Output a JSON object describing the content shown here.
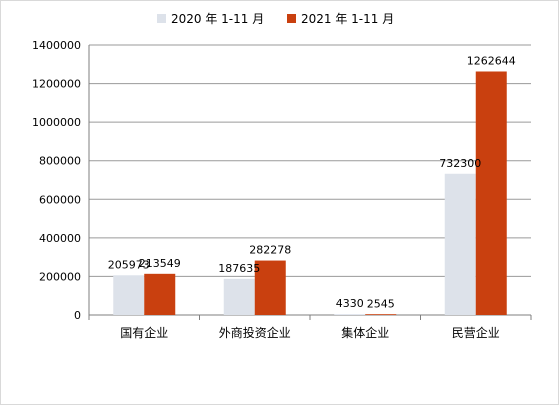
{
  "chart_data": {
    "type": "bar",
    "categories": [
      "国有企业",
      "外商投资企业",
      "集体企业",
      "民营企业"
    ],
    "series": [
      {
        "name": "2020 年 1-11 月",
        "values": [
          205973,
          187635,
          4330,
          732300
        ],
        "color": "#dde2ea"
      },
      {
        "name": "2021 年 1-11 月",
        "values": [
          213549,
          282278,
          2545,
          1262644
        ],
        "color": "#c9400f"
      }
    ],
    "ylim": [
      0,
      1400000
    ],
    "yticks": [
      0,
      200000,
      400000,
      600000,
      800000,
      1000000,
      1200000,
      1400000
    ],
    "legend_position": "top",
    "grid": true,
    "data_labels": true
  }
}
